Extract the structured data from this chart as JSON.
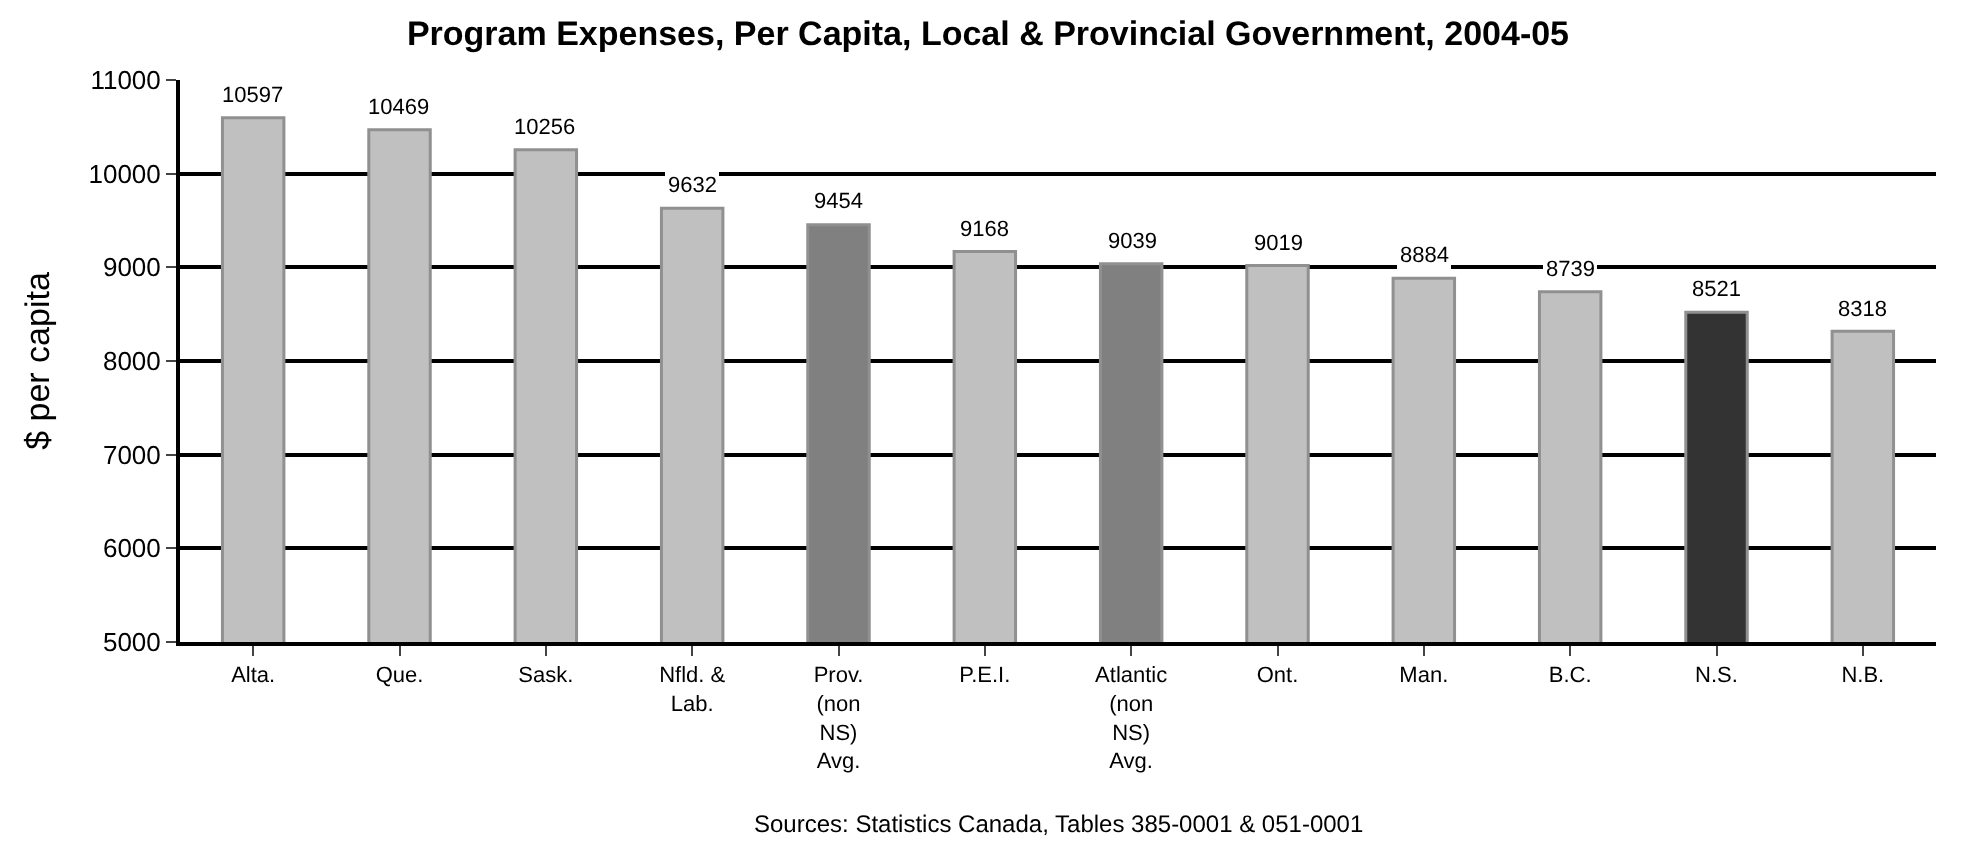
{
  "chart_data": {
    "type": "bar",
    "title": "Program Expenses, Per Capita, Local & Provincial Government, 2004-05",
    "ylabel": "$ per capita",
    "categories": [
      "Alta.",
      "Que.",
      "Sask.",
      "Nfld. & Lab.",
      "Prov. (non NS) Avg.",
      "P.E.I.",
      "Atlantic (non NS) Avg.",
      "Ont.",
      "Man.",
      "B.C.",
      "N.S.",
      "N.B."
    ],
    "values": [
      10597,
      10469,
      10256,
      9632,
      9454,
      9168,
      9039,
      9019,
      8884,
      8739,
      8521,
      8318
    ],
    "colors": [
      "#c0c0c0",
      "#c0c0c0",
      "#c0c0c0",
      "#c0c0c0",
      "#808080",
      "#c0c0c0",
      "#808080",
      "#c0c0c0",
      "#c0c0c0",
      "#c0c0c0",
      "#333333",
      "#c0c0c0"
    ],
    "data_labels": true,
    "ylim": [
      5000,
      11000
    ],
    "yticks": [
      5000,
      6000,
      7000,
      8000,
      9000,
      10000,
      11000
    ],
    "grid": "y",
    "legend": false,
    "annotations": [
      "Sources: Statistics Canada, Tables 385-0001 & 051-0001"
    ]
  }
}
